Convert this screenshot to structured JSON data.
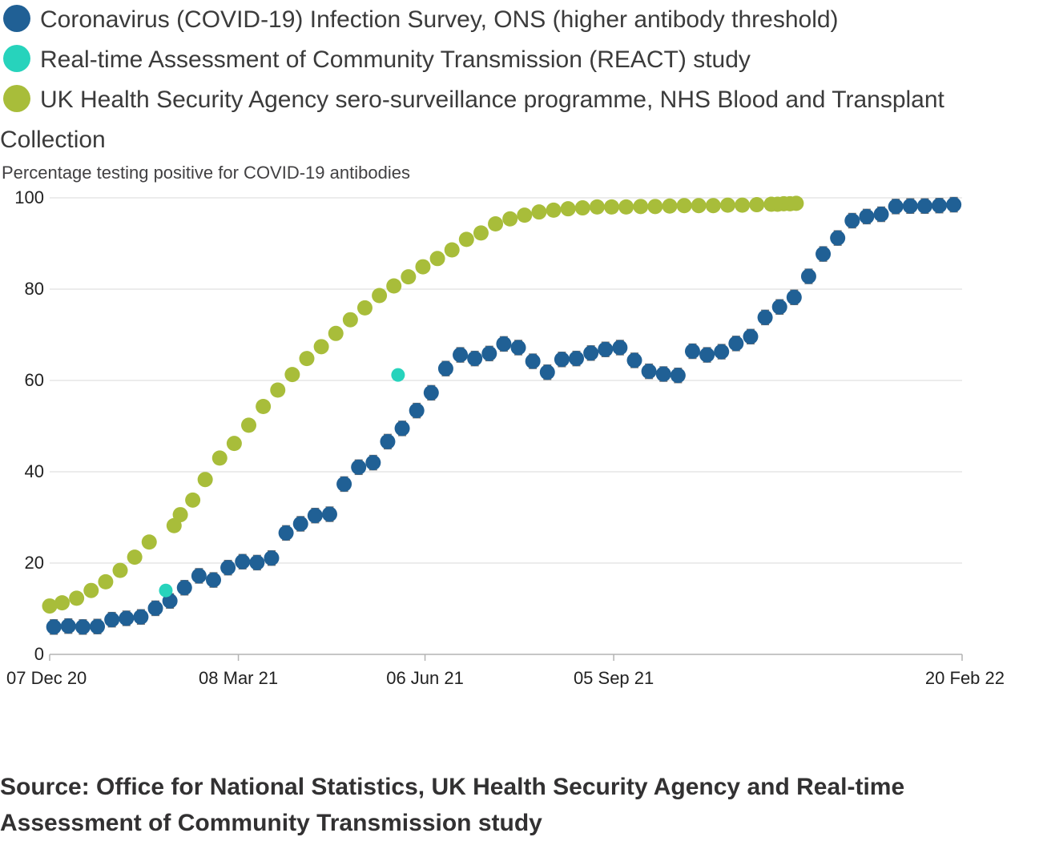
{
  "legend": [
    {
      "label": "Coronavirus (COVID-19) Infection Survey, ONS (higher antibody threshold)",
      "color": "#206095"
    },
    {
      "label": "Real-time Assessment of Community Transmission (REACT) study",
      "color": "#27d3bc"
    },
    {
      "label": "UK Health Security Agency sero-surveillance programme, NHS Blood and Transplant Collection",
      "color": "#a8bd3a"
    }
  ],
  "source": "Source: Office for National Statistics, UK Health Security Agency and Real-time Assessment of Community Transmission study",
  "chart_data": {
    "type": "scatter",
    "ylabel": "Percentage testing positive for COVID-19 antibodies",
    "ylim": [
      0,
      100
    ],
    "yticks": [
      0,
      20,
      40,
      60,
      80,
      100
    ],
    "xlim": [
      "2020-12-07",
      "2022-02-20"
    ],
    "xticks": [
      {
        "date": "2020-12-07",
        "label": "07 Dec 20"
      },
      {
        "date": "2021-03-08",
        "label": "08 Mar 21"
      },
      {
        "date": "2021-06-06",
        "label": "06 Jun 21"
      },
      {
        "date": "2021-09-05",
        "label": "05 Sep 21"
      },
      {
        "date": "2022-02-20",
        "label": "20 Feb 22"
      }
    ],
    "grid": true,
    "series": [
      {
        "name": "Coronavirus (COVID-19) Infection Survey, ONS (higher antibody threshold)",
        "color": "#206095",
        "error_bars": true,
        "points": [
          [
            "2020-12-09",
            6.0
          ],
          [
            "2020-12-16",
            6.2
          ],
          [
            "2020-12-23",
            6.0
          ],
          [
            "2020-12-30",
            6.1
          ],
          [
            "2021-01-06",
            7.6
          ],
          [
            "2021-01-13",
            7.9
          ],
          [
            "2021-01-20",
            8.2
          ],
          [
            "2021-01-27",
            10.1
          ],
          [
            "2021-02-03",
            11.7
          ],
          [
            "2021-02-10",
            14.6
          ],
          [
            "2021-02-17",
            17.2
          ],
          [
            "2021-02-24",
            16.3
          ],
          [
            "2021-03-03",
            19.0
          ],
          [
            "2021-03-10",
            20.3
          ],
          [
            "2021-03-17",
            20.1
          ],
          [
            "2021-03-24",
            21.1
          ],
          [
            "2021-03-31",
            26.6
          ],
          [
            "2021-04-07",
            28.6
          ],
          [
            "2021-04-14",
            30.4
          ],
          [
            "2021-04-21",
            30.7
          ],
          [
            "2021-04-28",
            37.3
          ],
          [
            "2021-05-05",
            41.0
          ],
          [
            "2021-05-12",
            42.0
          ],
          [
            "2021-05-19",
            46.6
          ],
          [
            "2021-05-26",
            49.5
          ],
          [
            "2021-06-02",
            53.4
          ],
          [
            "2021-06-09",
            57.3
          ],
          [
            "2021-06-16",
            62.6
          ],
          [
            "2021-06-23",
            65.6
          ],
          [
            "2021-06-30",
            64.8
          ],
          [
            "2021-07-07",
            65.9
          ],
          [
            "2021-07-14",
            68.0
          ],
          [
            "2021-07-21",
            67.2
          ],
          [
            "2021-07-28",
            64.2
          ],
          [
            "2021-08-04",
            61.8
          ],
          [
            "2021-08-11",
            64.6
          ],
          [
            "2021-08-18",
            64.8
          ],
          [
            "2021-08-25",
            66.0
          ],
          [
            "2021-09-01",
            66.8
          ],
          [
            "2021-09-08",
            67.2
          ],
          [
            "2021-09-15",
            64.4
          ],
          [
            "2021-09-22",
            62.0
          ],
          [
            "2021-09-29",
            61.4
          ],
          [
            "2021-10-06",
            61.1
          ],
          [
            "2021-10-13",
            66.4
          ],
          [
            "2021-10-20",
            65.6
          ],
          [
            "2021-10-27",
            66.3
          ],
          [
            "2021-11-03",
            68.1
          ],
          [
            "2021-11-10",
            69.6
          ],
          [
            "2021-11-17",
            73.8
          ],
          [
            "2021-11-24",
            76.1
          ],
          [
            "2021-12-01",
            78.2
          ],
          [
            "2021-12-08",
            82.8
          ],
          [
            "2021-12-15",
            87.7
          ],
          [
            "2021-12-22",
            91.2
          ],
          [
            "2021-12-29",
            95.0
          ],
          [
            "2022-01-05",
            95.9
          ],
          [
            "2022-01-12",
            96.4
          ],
          [
            "2022-01-19",
            98.1
          ],
          [
            "2022-01-26",
            98.2
          ],
          [
            "2022-02-02",
            98.2
          ],
          [
            "2022-02-09",
            98.3
          ],
          [
            "2022-02-16",
            98.5
          ]
        ]
      },
      {
        "name": "Real-time Assessment of Community Transmission (REACT) study",
        "color": "#27d3bc",
        "error_bars": false,
        "points": [
          [
            "2021-02-01",
            14.0
          ],
          [
            "2021-05-24",
            61.2
          ]
        ]
      },
      {
        "name": "UK Health Security Agency sero-surveillance programme, NHS Blood and Transplant Collection",
        "color": "#a8bd3a",
        "error_bars": false,
        "points": [
          [
            "2020-12-07",
            10.6
          ],
          [
            "2020-12-13",
            11.3
          ],
          [
            "2020-12-20",
            12.3
          ],
          [
            "2020-12-27",
            14.0
          ],
          [
            "2021-01-03",
            15.9
          ],
          [
            "2021-01-10",
            18.4
          ],
          [
            "2021-01-17",
            21.3
          ],
          [
            "2021-01-24",
            24.6
          ],
          [
            "2021-02-05",
            28.2
          ],
          [
            "2021-02-08",
            30.6
          ],
          [
            "2021-02-14",
            33.8
          ],
          [
            "2021-02-20",
            38.3
          ],
          [
            "2021-02-27",
            43.0
          ],
          [
            "2021-03-06",
            46.2
          ],
          [
            "2021-03-13",
            50.2
          ],
          [
            "2021-03-20",
            54.3
          ],
          [
            "2021-03-27",
            57.9
          ],
          [
            "2021-04-03",
            61.3
          ],
          [
            "2021-04-10",
            64.8
          ],
          [
            "2021-04-17",
            67.4
          ],
          [
            "2021-04-24",
            70.3
          ],
          [
            "2021-05-01",
            73.3
          ],
          [
            "2021-05-08",
            75.9
          ],
          [
            "2021-05-15",
            78.6
          ],
          [
            "2021-05-22",
            80.7
          ],
          [
            "2021-05-29",
            82.7
          ],
          [
            "2021-06-05",
            84.9
          ],
          [
            "2021-06-12",
            86.7
          ],
          [
            "2021-06-19",
            88.6
          ],
          [
            "2021-06-26",
            90.9
          ],
          [
            "2021-07-03",
            92.3
          ],
          [
            "2021-07-10",
            94.3
          ],
          [
            "2021-07-17",
            95.4
          ],
          [
            "2021-07-24",
            96.2
          ],
          [
            "2021-07-31",
            96.9
          ],
          [
            "2021-08-07",
            97.3
          ],
          [
            "2021-08-14",
            97.6
          ],
          [
            "2021-08-21",
            97.8
          ],
          [
            "2021-08-28",
            98.0
          ],
          [
            "2021-09-04",
            98.0
          ],
          [
            "2021-09-11",
            98.0
          ],
          [
            "2021-09-18",
            98.1
          ],
          [
            "2021-09-25",
            98.1
          ],
          [
            "2021-10-02",
            98.2
          ],
          [
            "2021-10-09",
            98.3
          ],
          [
            "2021-10-16",
            98.3
          ],
          [
            "2021-10-23",
            98.3
          ],
          [
            "2021-10-30",
            98.4
          ],
          [
            "2021-11-06",
            98.4
          ],
          [
            "2021-11-13",
            98.5
          ],
          [
            "2021-11-20",
            98.6
          ],
          [
            "2021-11-23",
            98.6
          ],
          [
            "2021-11-26",
            98.7
          ],
          [
            "2021-11-29",
            98.7
          ],
          [
            "2021-12-02",
            98.8
          ]
        ]
      }
    ]
  }
}
